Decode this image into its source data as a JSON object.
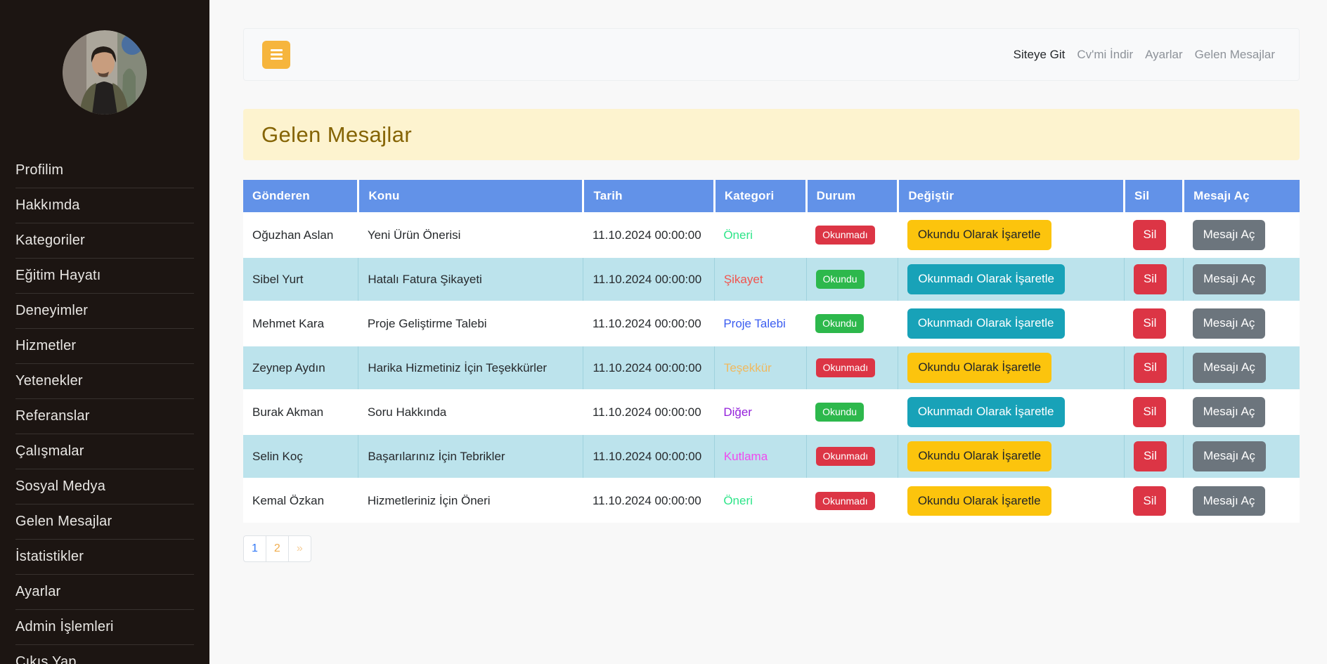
{
  "sidebar": {
    "items": [
      "Profilim",
      "Hakkımda",
      "Kategoriler",
      "Eğitim Hayatı",
      "Deneyimler",
      "Hizmetler",
      "Yetenekler",
      "Referanslar",
      "Çalışmalar",
      "Sosyal Medya",
      "Gelen Mesajlar",
      "İstatistikler",
      "Ayarlar",
      "Admin İşlemleri",
      "Çıkış Yap"
    ]
  },
  "topbar": {
    "menu_icon": "hamburger-icon",
    "links": [
      {
        "label": "Siteye Git",
        "active": true
      },
      {
        "label": "Cv'mi İndir",
        "active": false
      },
      {
        "label": "Ayarlar",
        "active": false
      },
      {
        "label": "Gelen Mesajlar",
        "active": false
      }
    ]
  },
  "page": {
    "title": "Gelen Mesajlar"
  },
  "table": {
    "headers": [
      "Gönderen",
      "Konu",
      "Tarih",
      "Kategori",
      "Durum",
      "Değiştir",
      "Sil",
      "Mesajı Aç"
    ],
    "actions": {
      "delete_label": "Sil",
      "open_label": "Mesajı Aç"
    },
    "rows": [
      {
        "sender": "Oğuzhan Aslan",
        "subject": "Yeni Ürün Önerisi",
        "date": "11.10.2024 00:00:00",
        "category": {
          "label": "Öneri",
          "color": "#2ee589"
        },
        "status": {
          "label": "Okunmadı",
          "type": "unread"
        },
        "toggle": {
          "label": "Okundu Olarak İşaretle",
          "type": "mark-read"
        }
      },
      {
        "sender": "Sibel Yurt",
        "subject": "Hatalı Fatura Şikayeti",
        "date": "11.10.2024 00:00:00",
        "category": {
          "label": "Şikayet",
          "color": "#f2544e"
        },
        "status": {
          "label": "Okundu",
          "type": "read"
        },
        "toggle": {
          "label": "Okunmadı Olarak İşaretle",
          "type": "mark-unread"
        }
      },
      {
        "sender": "Mehmet Kara",
        "subject": "Proje Geliştirme Talebi",
        "date": "11.10.2024 00:00:00",
        "category": {
          "label": "Proje Talebi",
          "color": "#3b5df0"
        },
        "status": {
          "label": "Okundu",
          "type": "read"
        },
        "toggle": {
          "label": "Okunmadı Olarak İşaretle",
          "type": "mark-unread"
        }
      },
      {
        "sender": "Zeynep Aydın",
        "subject": "Harika Hizmetiniz İçin Teşekkürler",
        "date": "11.10.2024 00:00:00",
        "category": {
          "label": "Teşekkür",
          "color": "#f0b95f"
        },
        "status": {
          "label": "Okunmadı",
          "type": "unread"
        },
        "toggle": {
          "label": "Okundu Olarak İşaretle",
          "type": "mark-read"
        }
      },
      {
        "sender": "Burak Akman",
        "subject": "Soru Hakkında",
        "date": "11.10.2024 00:00:00",
        "category": {
          "label": "Diğer",
          "color": "#9421db"
        },
        "status": {
          "label": "Okundu",
          "type": "read"
        },
        "toggle": {
          "label": "Okunmadı Olarak İşaretle",
          "type": "mark-unread"
        }
      },
      {
        "sender": "Selin Koç",
        "subject": "Başarılarınız İçin Tebrikler",
        "date": "11.10.2024 00:00:00",
        "category": {
          "label": "Kutlama",
          "color": "#ef49ef"
        },
        "status": {
          "label": "Okunmadı",
          "type": "unread"
        },
        "toggle": {
          "label": "Okundu Olarak İşaretle",
          "type": "mark-read"
        }
      },
      {
        "sender": "Kemal Özkan",
        "subject": "Hizmetleriniz İçin Öneri",
        "date": "11.10.2024 00:00:00",
        "category": {
          "label": "Öneri",
          "color": "#2ee589"
        },
        "status": {
          "label": "Okunmadı",
          "type": "unread"
        },
        "toggle": {
          "label": "Okundu Olarak İşaretle",
          "type": "mark-read"
        }
      }
    ]
  },
  "pagination": {
    "pages": [
      {
        "label": "1",
        "color": "#3178f6",
        "active": true
      },
      {
        "label": "2",
        "color": "#f0ad4e",
        "active": false
      },
      {
        "label": "»",
        "color": "#f6cf9b",
        "active": false
      }
    ]
  },
  "colors": {
    "header_blue": "#6292e8",
    "row_stripe": "#bce3ec",
    "alert_bg": "#fdf3cf",
    "alert_text": "#856404",
    "badge_unread": "#dc3545",
    "badge_read": "#2db84c",
    "btn_mark_read": "#fcc40d",
    "btn_mark_unread": "#18a2b8",
    "btn_delete": "#dc3545",
    "btn_open": "#6c757d",
    "hamburger_yellow": "#f6b53d"
  }
}
